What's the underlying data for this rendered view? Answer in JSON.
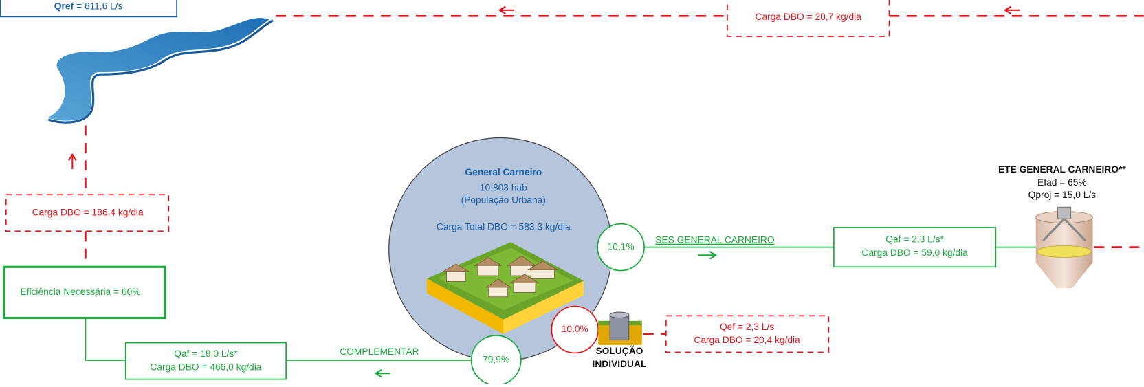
{
  "river_box": {
    "label": "Qref =",
    "value": "611,6 L/s"
  },
  "top_flow": {
    "load": "Carga DBO = 20,7 kg/dia"
  },
  "river_flow": {
    "load": "Carga DBO = 186,4 kg/dia"
  },
  "efficiency": {
    "label": "Eficiência Necessária = 60%"
  },
  "complementar": {
    "flow": "Qaf = 18,0 L/s*",
    "load": "Carga DBO = 466,0 kg/dia",
    "label": "COMPLEMENTAR",
    "share": "79,9%"
  },
  "city": {
    "name": "General Carneiro",
    "population": "10.803 hab",
    "population_note": "(População Urbana)",
    "total_load": "Carga Total DBO = 583,3 kg/dia"
  },
  "ses": {
    "share": "10,1%",
    "label": "SES GENERAL CARNEIRO",
    "flow": "Qaf = 2,3 L/s*",
    "load": "Carga DBO = 59,0 kg/dia"
  },
  "ete": {
    "title": "ETE GENERAL CARNEIRO**",
    "efficiency": "Efad = 65%",
    "design_flow": "Qproj = 15,0 L/s"
  },
  "individual": {
    "share": "10,0%",
    "label_line1": "SOLUÇÃO",
    "label_line2": "INDIVIDUAL",
    "flow": "Qef = 2,3 L/s",
    "load": "Carga DBO = 20,4 kg/dia"
  }
}
